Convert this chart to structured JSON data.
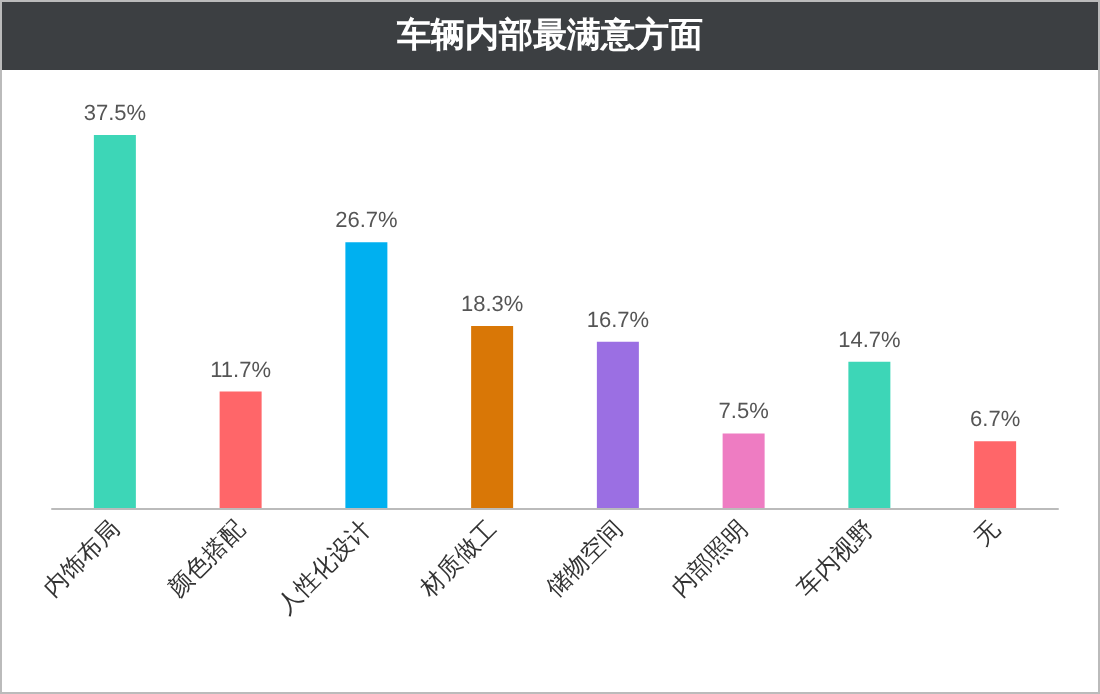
{
  "chart_data": {
    "type": "bar",
    "title": "车辆内部最满意方面",
    "categories": [
      "内饰布局",
      "颜色搭配",
      "人性化设计",
      "材质做工",
      "储物空间",
      "内部照明",
      "车内视野",
      "无"
    ],
    "values": [
      37.5,
      11.7,
      26.7,
      18.3,
      16.7,
      7.5,
      14.7,
      6.7
    ],
    "colors": [
      "#3dd6b7",
      "#ff6669",
      "#00b0f0",
      "#d97706",
      "#9b6fe3",
      "#ee7cc2",
      "#3dd6b7",
      "#ff6669"
    ],
    "value_labels": [
      "37.5%",
      "11.7%",
      "26.7%",
      "18.3%",
      "16.7%",
      "7.5%",
      "14.7%",
      "6.7%"
    ]
  }
}
